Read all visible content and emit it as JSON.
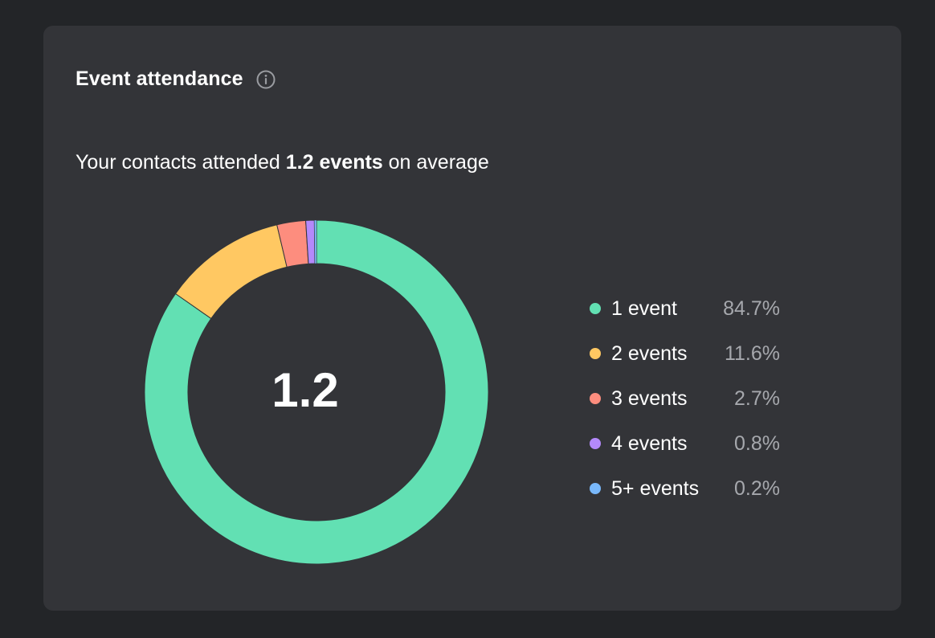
{
  "card": {
    "title": "Event attendance",
    "info_icon": "info-icon"
  },
  "summary": {
    "prefix": "Your contacts attended ",
    "highlight": "1.2 events",
    "suffix": " on average"
  },
  "chart_data": {
    "type": "pie",
    "variant": "donut",
    "center_label": "1.2",
    "slices": [
      {
        "label": "1 event",
        "value": 84.7,
        "display": "84.7%",
        "color": "#62e0b3"
      },
      {
        "label": "2 events",
        "value": 11.6,
        "display": "11.6%",
        "color": "#ffc862"
      },
      {
        "label": "3 events",
        "value": 2.7,
        "display": "2.7%",
        "color": "#fd8d7e"
      },
      {
        "label": "4 events",
        "value": 0.8,
        "display": "0.8%",
        "color": "#b489fb"
      },
      {
        "label": "5+ events",
        "value": 0.2,
        "display": "0.2%",
        "color": "#79b8fb"
      }
    ],
    "legend_position": "right"
  }
}
